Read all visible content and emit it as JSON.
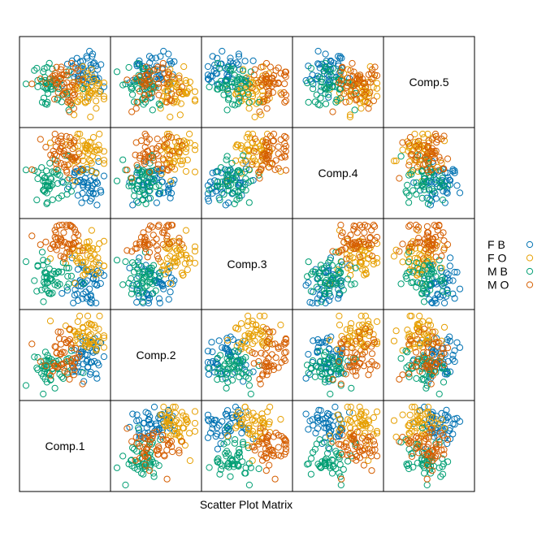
{
  "chart_data": {
    "type": "scatter",
    "subtype": "scatter-plot-matrix",
    "title": "",
    "xlabel": "Scatter Plot Matrix",
    "variables": [
      "Comp.1",
      "Comp.2",
      "Comp.3",
      "Comp.4",
      "Comp.5"
    ],
    "axis_ticks_shown": false,
    "grid": false,
    "legend_position": "right",
    "marker": "open-circle",
    "series": [
      {
        "name": "F B",
        "color": "#0072B2",
        "n": 50
      },
      {
        "name": "F O",
        "color": "#E69F00",
        "n": 50
      },
      {
        "name": "M B",
        "color": "#009E73",
        "n": 50
      },
      {
        "name": "M O",
        "color": "#D55E00",
        "n": 50
      }
    ],
    "group_means": {
      "F B": [
        0.5,
        -0.1,
        -0.45,
        -0.3,
        0.25
      ],
      "F O": [
        0.6,
        0.55,
        0.1,
        0.6,
        -0.25
      ],
      "M B": [
        -0.45,
        -0.35,
        -0.35,
        -0.2,
        0.0
      ],
      "M O": [
        -0.05,
        0.0,
        0.6,
        0.5,
        -0.05
      ]
    },
    "group_sd": 0.28,
    "value_range": [
      -1,
      1
    ]
  }
}
